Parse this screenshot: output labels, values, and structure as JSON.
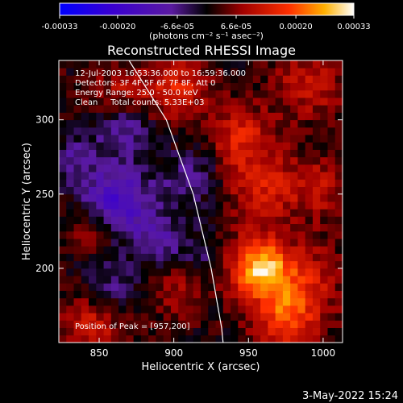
{
  "chart_data": {
    "type": "heatmap",
    "title": "Reconstructed RHESSI Image",
    "xlabel": "Heliocentric X (arcsec)",
    "ylabel": "Heliocentric Y (arcsec)",
    "xlim": [
      823,
      1013
    ],
    "ylim": [
      150,
      340
    ],
    "x_ticks": [
      "850",
      "900",
      "950",
      "1000"
    ],
    "x_tick_values": [
      850,
      900,
      950,
      1000
    ],
    "y_ticks": [
      "200",
      "250",
      "300"
    ],
    "y_tick_values": [
      200,
      250,
      300
    ],
    "colorbar": {
      "range": [
        -0.00033,
        0.00033
      ],
      "ticks": [
        "-0.00033",
        "-0.00020",
        "-6.6e-05",
        "6.6e-05",
        "0.00020",
        "0.00033"
      ],
      "tick_values": [
        -0.00033,
        -0.0002,
        -6.6e-05,
        6.6e-05,
        0.0002,
        0.00033
      ],
      "units_label": "(photons cm⁻² s⁻¹ asec⁻²)"
    },
    "annotations": [
      "12-Jul-2003 16:53:36.000 to 16:59:36.000",
      "Detectors: 3F 4F 5F 6F 7F 8F, Att 0",
      "Energy Range: 25.0 - 50.0 keV",
      "Clean     Total counts: 5.33E+03"
    ],
    "peak_label": "Position of Peak = [957,200]",
    "peak_position": [
      957,
      200
    ],
    "peak_value": 0.00033,
    "limb_curve": [
      [
        870,
        340
      ],
      [
        895,
        300
      ],
      [
        913,
        250
      ],
      [
        925,
        200
      ],
      [
        932,
        160
      ],
      [
        933,
        150
      ]
    ]
  },
  "footer": {
    "timestamp": "3-May-2022 15:24"
  }
}
